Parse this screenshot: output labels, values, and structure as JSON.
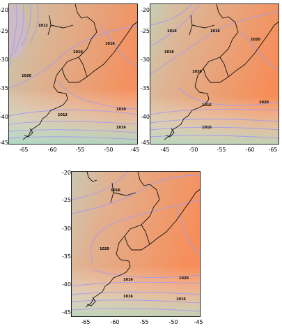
{
  "colors": {
    "warm": "#f19566",
    "cool": "#b5ddc6",
    "contour": "#a59bf0",
    "coast": "#111111"
  },
  "panels": [
    {
      "x_ticks": [
        "-65",
        "-60",
        "-55",
        "-50",
        "-45"
      ],
      "y_ticks": [
        "-20",
        "-25",
        "-30",
        "-35",
        "-40",
        "-45"
      ],
      "contour_labels": [
        "1012",
        "1016",
        "1016",
        "1020",
        "1020",
        "1012",
        "1016"
      ]
    },
    {
      "x_ticks": [
        "-45",
        "-50",
        "-55",
        "-60",
        "-65"
      ],
      "y_ticks": [
        "-20",
        "-25",
        "-30",
        "-35",
        "-40",
        "-45"
      ],
      "contour_labels": [
        "1016",
        "1016",
        "1016",
        "1020",
        "1020",
        "1020",
        "1016",
        "1016"
      ]
    },
    {
      "x_ticks": [
        "-65",
        "-60",
        "-55",
        "-50",
        "-45"
      ],
      "y_ticks": [
        "-20",
        "-25",
        "-30",
        "-35",
        "-40",
        "-45"
      ],
      "contour_labels": [
        "1016",
        "1020",
        "1016",
        "1016",
        "1020",
        "1016"
      ]
    }
  ]
}
